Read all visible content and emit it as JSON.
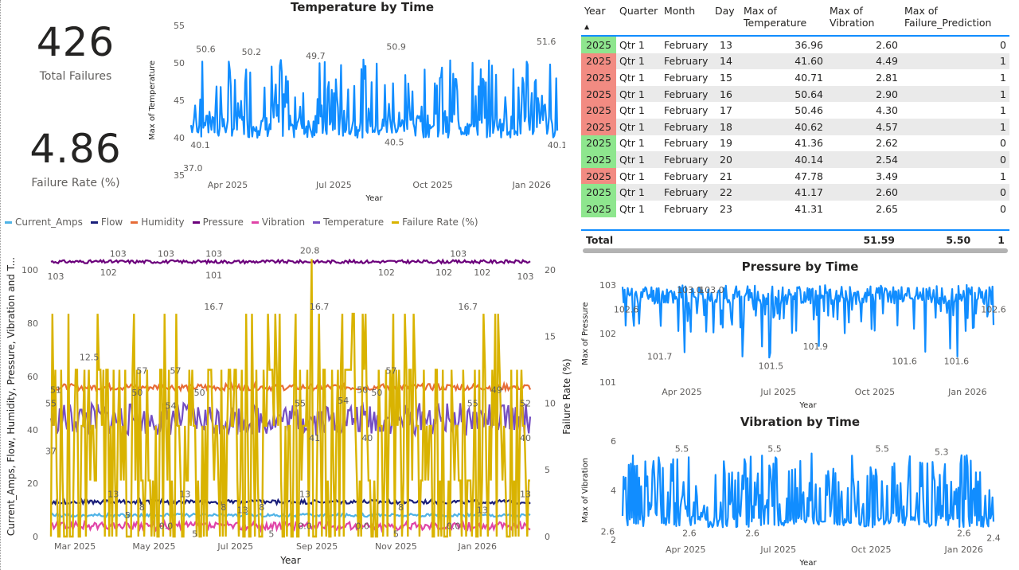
{
  "kpis": [
    {
      "value": "426",
      "label": "Total Failures"
    },
    {
      "value": "4.86",
      "label": "Failure Rate (%)"
    }
  ],
  "colors": {
    "main_line": "#118DFF",
    "current_amps": "#4FB3E6",
    "flow": "#1A1F7A",
    "humidity": "#E66C37",
    "pressure": "#6B007B",
    "vibration": "#E044A7",
    "temperature": "#744EC2",
    "failure_rate": "#D9B300",
    "year_fail": "#F28B82",
    "year_ok": "#8EE68E"
  },
  "chart_data": [
    {
      "id": "temperature",
      "type": "line",
      "title": "Temperature by Time",
      "xlabel": "Year",
      "ylabel": "Max of Temperature",
      "ylim": [
        35,
        55
      ],
      "yticks": [
        "55",
        "50",
        "45",
        "40",
        "35"
      ],
      "xticks": [
        "Apr 2025",
        "Jul 2025",
        "Oct 2025",
        "Jan 2026"
      ],
      "labels": [
        "50.6",
        "50.2",
        "49.7",
        "50.9",
        "51.6",
        "40.1",
        "37.0",
        "40.5",
        "40.1"
      ]
    },
    {
      "id": "pressure",
      "type": "line",
      "title": "Pressure by Time",
      "xlabel": "Year",
      "ylabel": "Max of Pressure",
      "ylim": [
        101,
        103
      ],
      "yticks": [
        "103",
        "102",
        "101"
      ],
      "xticks": [
        "Apr 2025",
        "Jul 2025",
        "Oct 2025",
        "Jan 2026"
      ],
      "labels": [
        "102.6",
        "103.0",
        "103.0",
        "101.7",
        "101.5",
        "101.9",
        "101.6",
        "101.6",
        "102.6"
      ]
    },
    {
      "id": "vibration",
      "type": "line",
      "title": "Vibration by Time",
      "xlabel": "Year",
      "ylabel": "Max of Vibration",
      "ylim": [
        2,
        6
      ],
      "yticks": [
        "6",
        "4",
        "2"
      ],
      "xticks": [
        "Apr 2025",
        "Jul 2025",
        "Oct 2025",
        "Jan 2026"
      ],
      "labels": [
        "2.6",
        "5.5",
        "2.6",
        "2.6",
        "5.5",
        "5.5",
        "5.3",
        "2.6",
        "2.4"
      ]
    },
    {
      "id": "combined",
      "type": "line",
      "title": "",
      "xlabel": "Year",
      "ylabel": "Current_Amps, Flow, Humidity, Pressure, Vibration and T...",
      "y2label": "Failure Rate (%)",
      "ylim": [
        0,
        105
      ],
      "y2lim": [
        0,
        21
      ],
      "yticks": [
        "100",
        "80",
        "60",
        "40",
        "20",
        "0"
      ],
      "y2ticks": [
        "20",
        "15",
        "10",
        "5",
        "0"
      ],
      "xticks": [
        "Mar 2025",
        "May 2025",
        "Jul 2025",
        "Sep 2025",
        "Nov 2025",
        "Jan 2026"
      ],
      "legend": [
        "Current_Amps",
        "Flow",
        "Humidity",
        "Pressure",
        "Vibration",
        "Temperature",
        "Failure Rate (%)"
      ],
      "series_levels": {
        "Pressure": 103,
        "Humidity": 56,
        "Temperature": 44,
        "Flow": 13,
        "Current_Amps": 8,
        "Vibration": 4
      },
      "labels": [
        "103",
        "103",
        "103",
        "103",
        "103",
        "102",
        "101",
        "102",
        "102",
        "102",
        "103",
        "20.8",
        "16.7",
        "16.7",
        "16.7",
        "12.5",
        "57",
        "57",
        "57",
        "51",
        "50",
        "50",
        "55",
        "54",
        "55",
        "50",
        "50",
        "49",
        "52",
        "55",
        "54",
        "37",
        "41",
        "40",
        "40",
        "13",
        "13",
        "13",
        "13",
        "13",
        "13",
        "8",
        "8",
        "8",
        "8",
        "0.0",
        "0.0",
        "0.0",
        "0.0",
        "5",
        "5",
        "5",
        "5"
      ]
    }
  ],
  "table": {
    "headers": [
      "Year",
      "Quarter",
      "Month",
      "Day",
      "Max of Temperature",
      "Max of Vibration",
      "Max of Failure_Prediction"
    ],
    "rows": [
      [
        "2025",
        "Qtr 1",
        "February",
        "13",
        "36.96",
        "2.60",
        "0"
      ],
      [
        "2025",
        "Qtr 1",
        "February",
        "14",
        "41.60",
        "4.49",
        "1"
      ],
      [
        "2025",
        "Qtr 1",
        "February",
        "15",
        "40.71",
        "2.81",
        "1"
      ],
      [
        "2025",
        "Qtr 1",
        "February",
        "16",
        "50.64",
        "2.90",
        "1"
      ],
      [
        "2025",
        "Qtr 1",
        "February",
        "17",
        "50.46",
        "4.30",
        "1"
      ],
      [
        "2025",
        "Qtr 1",
        "February",
        "18",
        "40.62",
        "4.57",
        "1"
      ],
      [
        "2025",
        "Qtr 1",
        "February",
        "19",
        "41.36",
        "2.62",
        "0"
      ],
      [
        "2025",
        "Qtr 1",
        "February",
        "20",
        "40.14",
        "2.54",
        "0"
      ],
      [
        "2025",
        "Qtr 1",
        "February",
        "21",
        "47.78",
        "3.49",
        "1"
      ],
      [
        "2025",
        "Qtr 1",
        "February",
        "22",
        "41.17",
        "2.60",
        "0"
      ],
      [
        "2025",
        "Qtr 1",
        "February",
        "23",
        "41.31",
        "2.65",
        "0"
      ]
    ],
    "total": [
      "Total",
      "51.59",
      "5.50",
      "1"
    ]
  }
}
